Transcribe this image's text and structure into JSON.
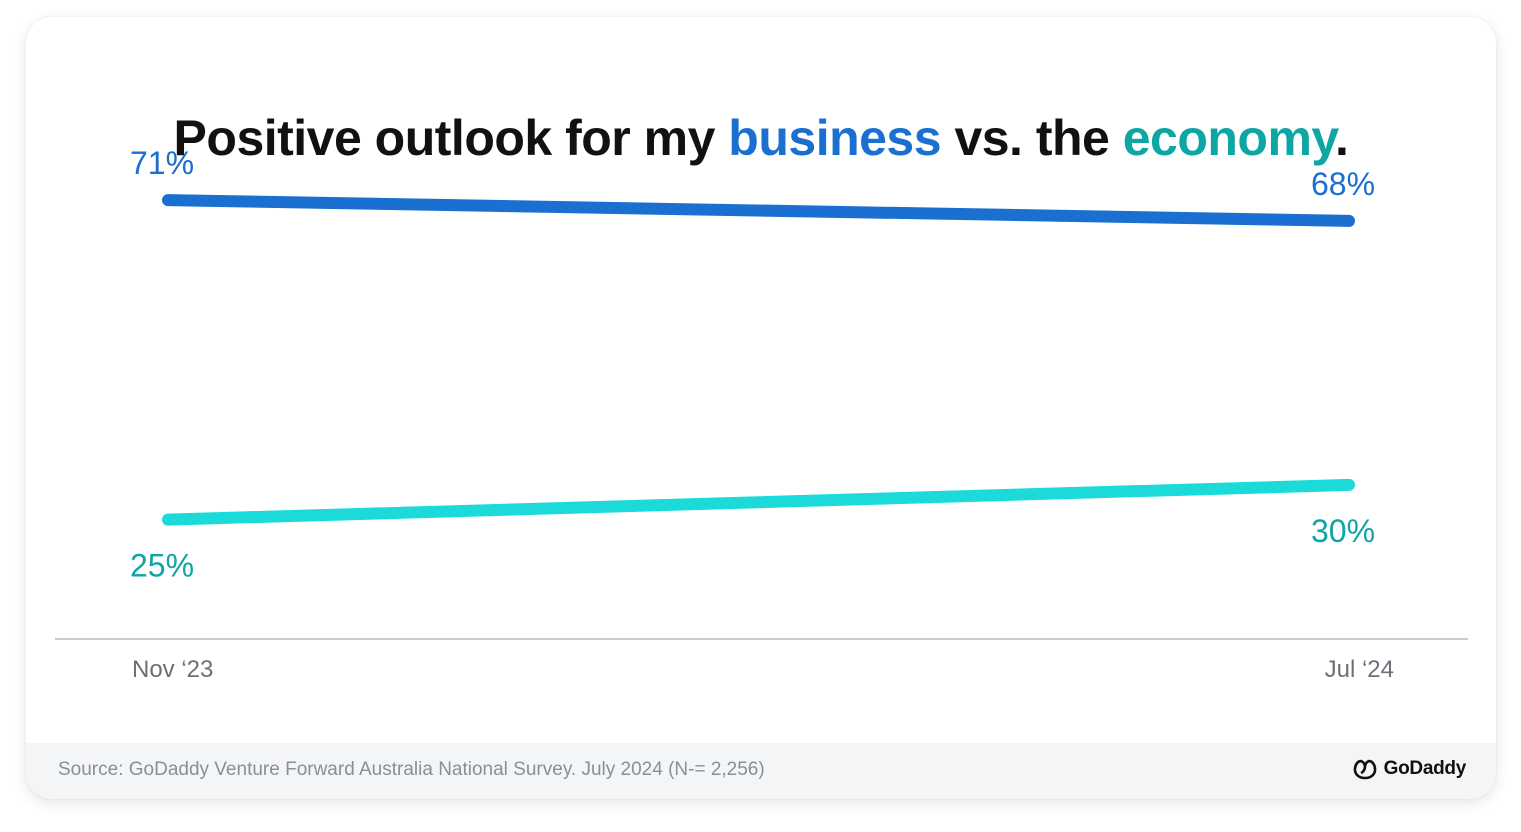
{
  "title": {
    "part1": "Positive outlook for my ",
    "highlight1": "business",
    "part2": " vs. the ",
    "highlight2": "economy",
    "part3": "."
  },
  "colors": {
    "business": "#1b6fd0",
    "economy_line": "#1ddada",
    "economy_label": "#0ea5a5",
    "axis": "#c7ccd3",
    "tick_label": "#6b7078"
  },
  "chart_data": {
    "type": "line",
    "x": [
      "Nov ‘23",
      "Jul ‘24"
    ],
    "series": [
      {
        "key": "business",
        "values": [
          71,
          68
        ],
        "labels": [
          "71%",
          "68%"
        ]
      },
      {
        "key": "economy",
        "values": [
          25,
          30
        ],
        "labels": [
          "25%",
          "30%"
        ]
      }
    ],
    "grid": false,
    "ylim": [
      0,
      100
    ]
  },
  "footer": {
    "source": "Source: GoDaddy Venture Forward Australia National Survey. July 2024 (N-= 2,256)",
    "logo_text": "GoDaddy",
    "logo_icon": "godaddy-logo-icon"
  }
}
